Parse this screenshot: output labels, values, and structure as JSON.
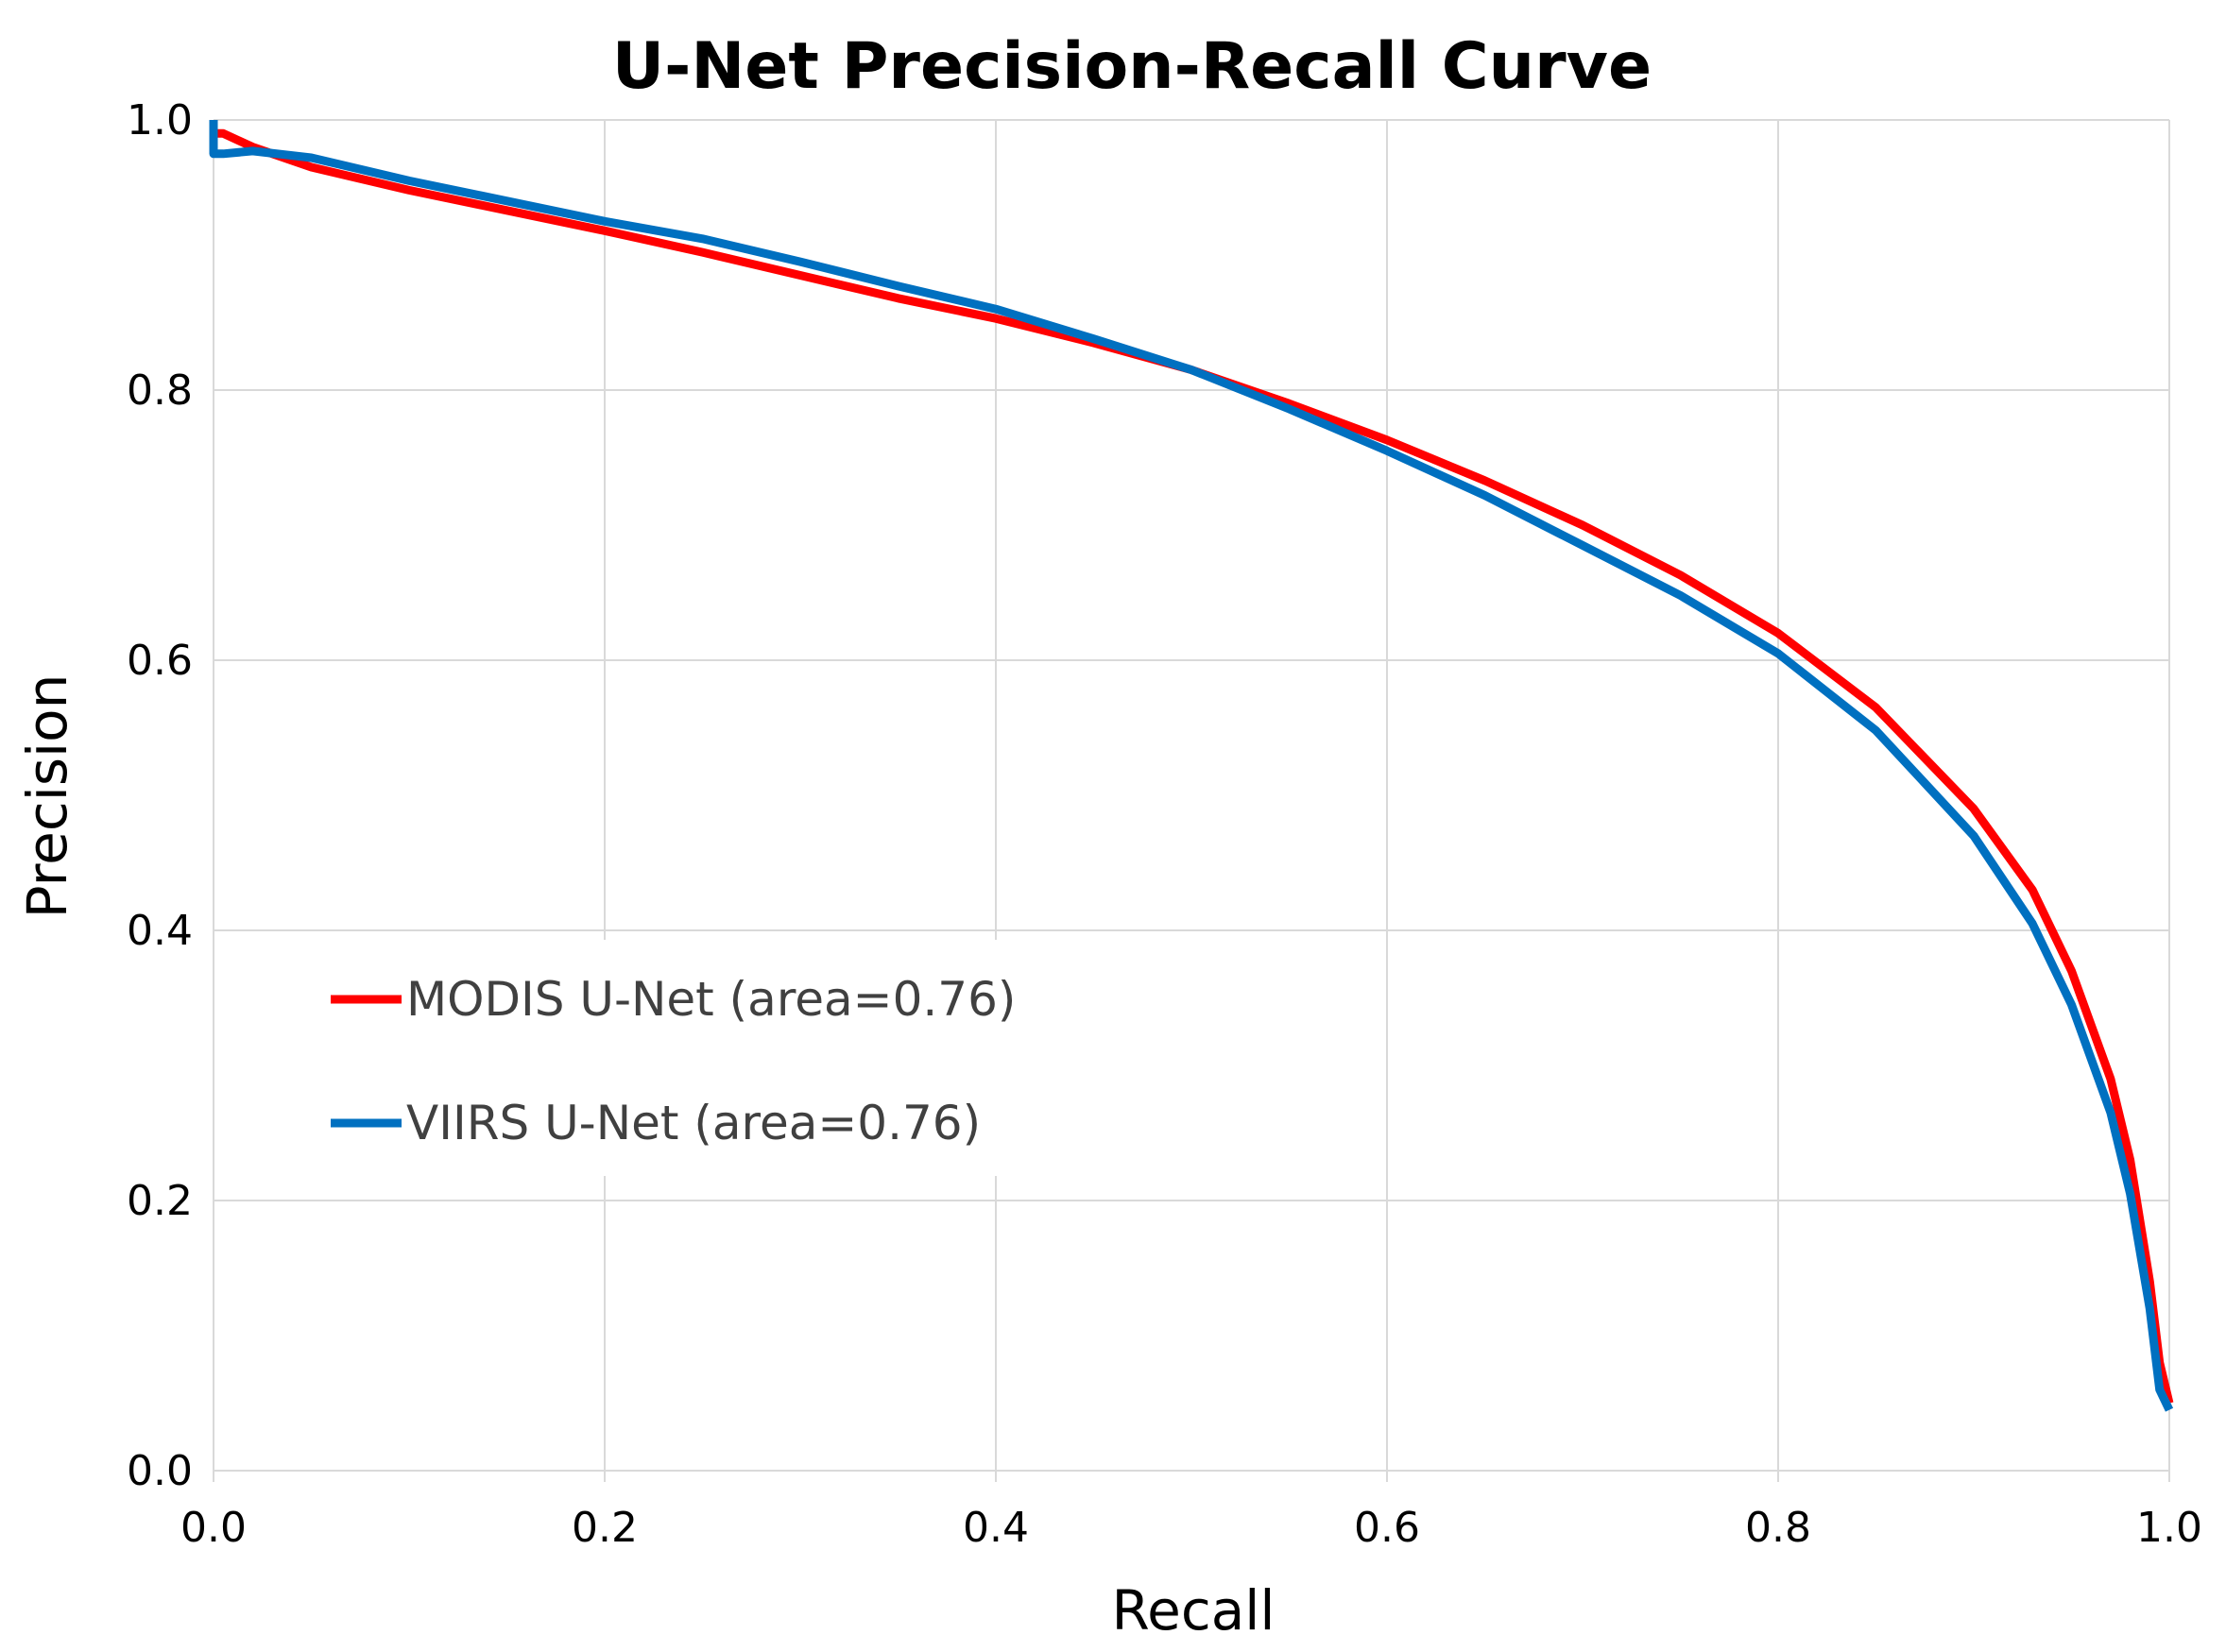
{
  "chart_data": {
    "type": "line",
    "title": "U-Net Precision-Recall Curve",
    "xlabel": "Recall",
    "ylabel": "Precision",
    "xlim": [
      0,
      1
    ],
    "ylim": [
      0,
      1
    ],
    "xticks": [
      "0.0",
      "0.2",
      "0.4",
      "0.6",
      "0.8",
      "1.0"
    ],
    "yticks": [
      "0.0",
      "0.2",
      "0.4",
      "0.6",
      "0.8",
      "1.0"
    ],
    "grid": true,
    "legend_position": "center-left",
    "series": [
      {
        "name": "MODIS U-Net (area=0.76)",
        "color": "#ff0000",
        "points": [
          [
            0.0,
            0.99
          ],
          [
            0.005,
            0.99
          ],
          [
            0.02,
            0.98
          ],
          [
            0.05,
            0.965
          ],
          [
            0.1,
            0.948
          ],
          [
            0.15,
            0.933
          ],
          [
            0.2,
            0.918
          ],
          [
            0.25,
            0.902
          ],
          [
            0.3,
            0.885
          ],
          [
            0.35,
            0.868
          ],
          [
            0.4,
            0.853
          ],
          [
            0.45,
            0.835
          ],
          [
            0.5,
            0.815
          ],
          [
            0.55,
            0.79
          ],
          [
            0.6,
            0.763
          ],
          [
            0.65,
            0.733
          ],
          [
            0.7,
            0.7
          ],
          [
            0.75,
            0.663
          ],
          [
            0.8,
            0.62
          ],
          [
            0.85,
            0.565
          ],
          [
            0.9,
            0.49
          ],
          [
            0.93,
            0.43
          ],
          [
            0.95,
            0.37
          ],
          [
            0.97,
            0.29
          ],
          [
            0.98,
            0.23
          ],
          [
            0.99,
            0.14
          ],
          [
            0.995,
            0.08
          ],
          [
            1.0,
            0.05
          ]
        ]
      },
      {
        "name": "VIIRS U-Net (area=0.76)",
        "color": "#0070c0",
        "points": [
          [
            0.0,
            1.0
          ],
          [
            0.0,
            0.975
          ],
          [
            0.005,
            0.975
          ],
          [
            0.02,
            0.977
          ],
          [
            0.05,
            0.972
          ],
          [
            0.1,
            0.955
          ],
          [
            0.15,
            0.94
          ],
          [
            0.2,
            0.925
          ],
          [
            0.25,
            0.912
          ],
          [
            0.3,
            0.895
          ],
          [
            0.35,
            0.877
          ],
          [
            0.4,
            0.86
          ],
          [
            0.45,
            0.838
          ],
          [
            0.5,
            0.815
          ],
          [
            0.55,
            0.786
          ],
          [
            0.6,
            0.755
          ],
          [
            0.65,
            0.722
          ],
          [
            0.7,
            0.685
          ],
          [
            0.75,
            0.648
          ],
          [
            0.8,
            0.605
          ],
          [
            0.85,
            0.548
          ],
          [
            0.9,
            0.47
          ],
          [
            0.93,
            0.405
          ],
          [
            0.95,
            0.345
          ],
          [
            0.97,
            0.265
          ],
          [
            0.98,
            0.205
          ],
          [
            0.99,
            0.12
          ],
          [
            0.995,
            0.06
          ],
          [
            1.0,
            0.045
          ]
        ]
      }
    ]
  }
}
